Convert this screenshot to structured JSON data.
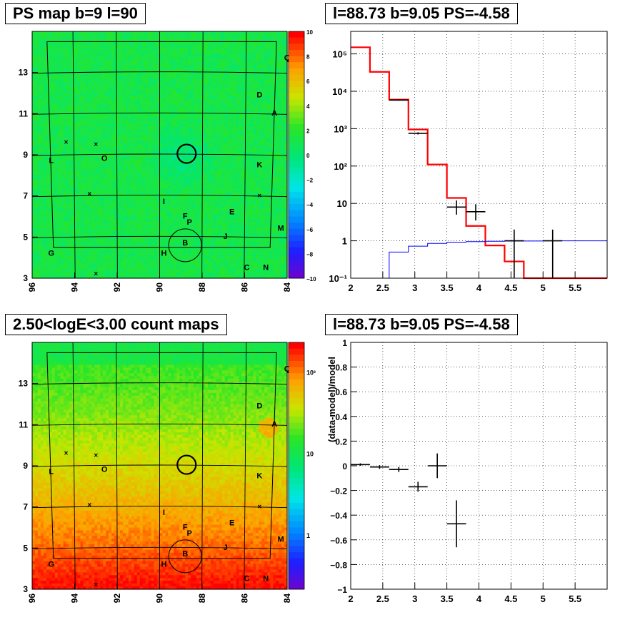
{
  "panels": {
    "top_left": {
      "title": "PS map b=9 l=90"
    },
    "top_right": {
      "title": "l=88.73 b=9.05 PS=-4.58"
    },
    "bottom_left": {
      "title": "2.50<logE<3.00 count maps"
    },
    "bottom_right": {
      "title": "l=88.73 b=9.05 PS=-4.58"
    }
  },
  "colors": {
    "model": "#ff0000",
    "background": "#0000ff",
    "data": "#000000"
  },
  "chart_data": [
    {
      "type": "heatmap",
      "title": "PS map b=9 l=90",
      "x_ticks": [
        "96",
        "94",
        "92",
        "90",
        "88",
        "86",
        "84"
      ],
      "y_ticks": [
        "3",
        "5",
        "7",
        "9",
        "11",
        "13"
      ],
      "xlim": [
        96,
        84
      ],
      "ylim": [
        3,
        15
      ],
      "colorbar_ticks": [
        "10",
        "8",
        "6",
        "4",
        "2",
        "0",
        "−2",
        "−4",
        "−6",
        "−8",
        "−10"
      ],
      "colorbar_range": [
        -10,
        10
      ],
      "source_labels": [
        {
          "name": "A",
          "l": 84.6,
          "b": 10.9
        },
        {
          "name": "B",
          "l": 88.8,
          "b": 4.6
        },
        {
          "name": "C",
          "l": 85.9,
          "b": 3.4
        },
        {
          "name": "D",
          "l": 85.3,
          "b": 11.8
        },
        {
          "name": "E",
          "l": 86.6,
          "b": 6.1
        },
        {
          "name": "F",
          "l": 88.8,
          "b": 5.9
        },
        {
          "name": "G",
          "l": 95.1,
          "b": 4.1
        },
        {
          "name": "H",
          "l": 89.8,
          "b": 4.1
        },
        {
          "name": "I",
          "l": 89.8,
          "b": 6.6
        },
        {
          "name": "J",
          "l": 86.9,
          "b": 4.9
        },
        {
          "name": "K",
          "l": 85.3,
          "b": 8.4
        },
        {
          "name": "L",
          "l": 95.1,
          "b": 8.6
        },
        {
          "name": "M",
          "l": 84.3,
          "b": 5.3
        },
        {
          "name": "N",
          "l": 85.0,
          "b": 3.4
        },
        {
          "name": "O",
          "l": 92.6,
          "b": 8.7
        },
        {
          "name": "P",
          "l": 88.6,
          "b": 5.6
        },
        {
          "name": "Q",
          "l": 84.0,
          "b": 13.6
        }
      ],
      "cross_markers": [
        {
          "l": 94.4,
          "b": 9.6
        },
        {
          "l": 93.0,
          "b": 9.5
        },
        {
          "l": 93.3,
          "b": 7.1
        },
        {
          "l": 85.3,
          "b": 7.0
        },
        {
          "l": 93.0,
          "b": 3.2
        }
      ],
      "source_circle": {
        "l": 88.73,
        "b": 9.05
      }
    },
    {
      "type": "line",
      "title": "l=88.73 b=9.05 PS=-4.58",
      "x_ticks": [
        "2",
        "2.5",
        "3",
        "3.5",
        "4",
        "4.5",
        "5",
        "5.5"
      ],
      "y_ticks": [
        "10⁻¹",
        "1",
        "10",
        "10²",
        "10³",
        "10⁴",
        "10⁵"
      ],
      "xlim": [
        2,
        6
      ],
      "ylim": [
        0.1,
        400000
      ],
      "y_scale": "log",
      "grid": true,
      "series": [
        {
          "type": "step",
          "edges": [
            2.0,
            2.3,
            2.6,
            2.9,
            3.2,
            3.5,
            3.8,
            4.1,
            4.4,
            4.7,
            5.0,
            5.3,
            5.6,
            6.0
          ],
          "values": [
            150000,
            33000,
            6000,
            950,
            110,
            14,
            2.5,
            0.75,
            0.28,
            0.1,
            0.1,
            0.1,
            0.1
          ]
        },
        {
          "type": "step",
          "edges": [
            2.6,
            2.9,
            3.2,
            3.5,
            3.8,
            4.1,
            4.4,
            4.7,
            5.0,
            5.3,
            5.6,
            6.0
          ],
          "values": [
            0.5,
            0.72,
            0.85,
            0.92,
            0.95,
            0.97,
            0.98,
            0.99,
            1.0,
            1.0,
            1.0
          ]
        },
        {
          "type": "errorbar",
          "points": [
            {
              "x": 2.75,
              "xerr": 0.15,
              "y": 5800,
              "ylo": 5600,
              "yhi": 6000
            },
            {
              "x": 3.05,
              "xerr": 0.15,
              "y": 750,
              "ylo": 700,
              "yhi": 800
            },
            {
              "x": 3.65,
              "xerr": 0.15,
              "y": 8,
              "ylo": 5,
              "yhi": 12
            },
            {
              "x": 3.95,
              "xerr": 0.15,
              "y": 6,
              "ylo": 3.5,
              "yhi": 9.5
            },
            {
              "x": 4.55,
              "xerr": 0.15,
              "y": 1,
              "ylo": 0.1,
              "yhi": 2
            },
            {
              "x": 5.15,
              "xerr": 0.15,
              "y": 1,
              "ylo": 0.1,
              "yhi": 2
            }
          ]
        }
      ]
    },
    {
      "type": "heatmap",
      "title": "2.50<logE<3.00 count maps",
      "x_ticks": [
        "96",
        "94",
        "92",
        "90",
        "88",
        "86",
        "84"
      ],
      "y_ticks": [
        "3",
        "5",
        "7",
        "9",
        "11",
        "13"
      ],
      "xlim": [
        96,
        84
      ],
      "ylim": [
        3,
        15
      ],
      "colorbar_ticks": [
        "10²",
        "10",
        "1"
      ],
      "colorbar_scale": "log"
    },
    {
      "type": "scatter",
      "title": "l=88.73 b=9.05 PS=-4.58",
      "ylabel": "(data-model)/model",
      "x_ticks": [
        "2",
        "2.5",
        "3",
        "3.5",
        "4",
        "4.5",
        "5",
        "5.5"
      ],
      "y_ticks": [
        "1",
        "0.8",
        "0.6",
        "0.4",
        "0.2",
        "0",
        "−0.2",
        "−0.4",
        "−0.6",
        "−0.8",
        "−1"
      ],
      "xlim": [
        2,
        6
      ],
      "ylim": [
        -1,
        1
      ],
      "grid": true,
      "points": [
        {
          "x": 2.15,
          "xerr": 0.15,
          "y": 0.01,
          "yerr": 0.01
        },
        {
          "x": 2.45,
          "xerr": 0.15,
          "y": -0.01,
          "yerr": 0.015
        },
        {
          "x": 2.75,
          "xerr": 0.15,
          "y": -0.03,
          "yerr": 0.02
        },
        {
          "x": 3.05,
          "xerr": 0.15,
          "y": -0.17,
          "yerr": 0.04
        },
        {
          "x": 3.35,
          "xerr": 0.15,
          "y": 0.0,
          "yerr": 0.1
        },
        {
          "x": 3.65,
          "xerr": 0.15,
          "y": -0.47,
          "yerr": 0.19
        }
      ]
    }
  ]
}
